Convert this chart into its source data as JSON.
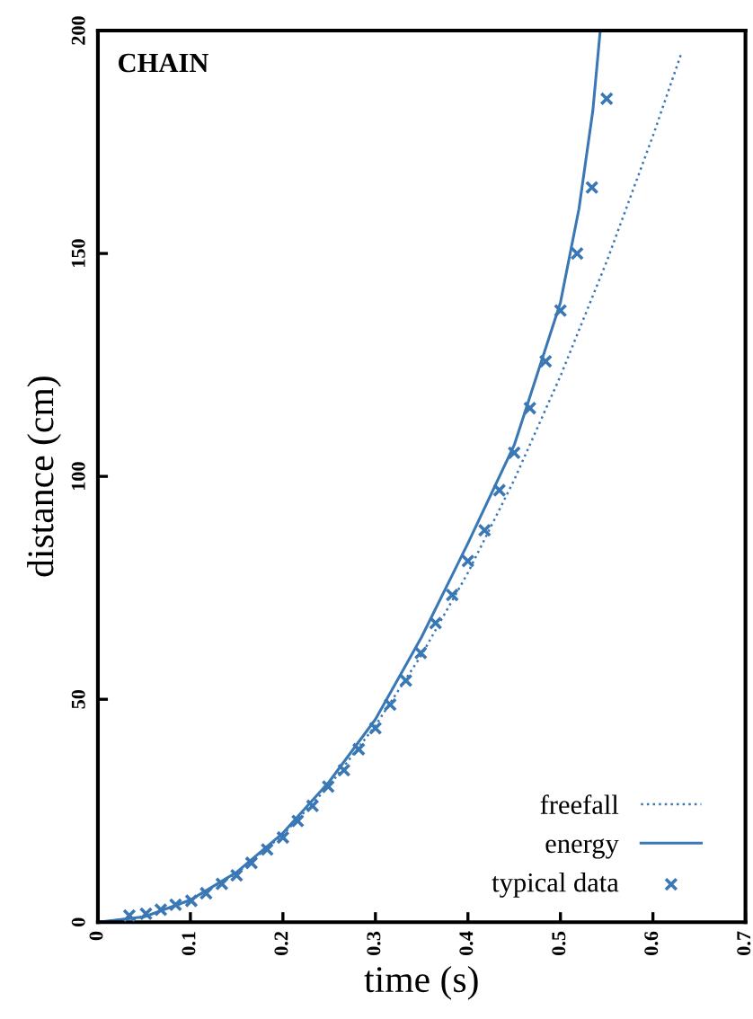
{
  "chart_data": {
    "type": "line",
    "title": "CHAIN",
    "xlabel": "time (s)",
    "ylabel": "distance (cm)",
    "xlim": [
      0,
      0.7
    ],
    "xticks": [
      0,
      0.1,
      0.2,
      0.3,
      0.4,
      0.5,
      0.6,
      0.7
    ],
    "ylim": [
      0,
      200
    ],
    "yticks": [
      0,
      50,
      100,
      150,
      200
    ],
    "grid": false,
    "legend": "bottom right",
    "series": [
      {
        "name": "freefall",
        "line_style": "dotted",
        "color": "#3a78b5",
        "x": [
          0,
          0.05,
          0.1,
          0.15,
          0.2,
          0.25,
          0.3,
          0.35,
          0.4,
          0.45,
          0.5,
          0.55,
          0.6,
          0.63
        ],
        "values": [
          0,
          1.2,
          4.9,
          11,
          19.6,
          30.6,
          44.1,
          60,
          78.4,
          99.2,
          122.5,
          148.2,
          176.4,
          194.5
        ]
      },
      {
        "name": "energy",
        "line_style": "solid",
        "color": "#3a78b5",
        "x": [
          0,
          0.05,
          0.1,
          0.15,
          0.2,
          0.25,
          0.3,
          0.35,
          0.4,
          0.45,
          0.5,
          0.52,
          0.535,
          0.543
        ],
        "values": [
          0,
          1.2,
          5,
          11.2,
          20,
          31.5,
          45.5,
          64,
          85,
          107,
          139,
          160,
          182,
          200
        ]
      },
      {
        "name": "typical data",
        "type": "scatter",
        "marker": "cross",
        "color": "#3a78b5",
        "x": [
          0.034,
          0.052,
          0.068,
          0.084,
          0.101,
          0.117,
          0.134,
          0.15,
          0.166,
          0.183,
          0.2,
          0.216,
          0.232,
          0.249,
          0.266,
          0.282,
          0.3,
          0.316,
          0.333,
          0.349,
          0.365,
          0.383,
          0.4,
          0.418,
          0.434,
          0.45,
          0.467,
          0.484,
          0.5,
          0.518,
          0.534,
          0.55
        ],
        "values": [
          1.5,
          1.9,
          2.8,
          3.9,
          4.8,
          6.5,
          8.6,
          10.5,
          13.3,
          16.3,
          19,
          22.7,
          26.1,
          30.4,
          34.1,
          38.8,
          43.5,
          48.8,
          54.2,
          60.4,
          67.1,
          73.4,
          81,
          87.9,
          96.9,
          105.3,
          115.3,
          125.8,
          137.2,
          150,
          164.8,
          184.7
        ]
      }
    ]
  }
}
